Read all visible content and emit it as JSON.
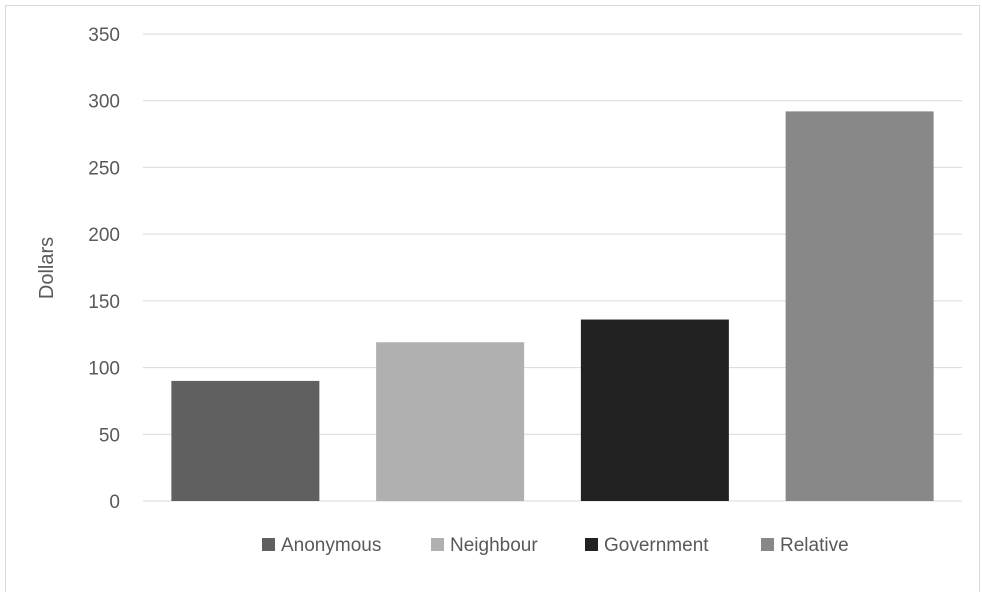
{
  "chart_data": {
    "type": "bar",
    "title": "",
    "xlabel": "",
    "ylabel": "Dollars",
    "ylim": [
      0,
      350
    ],
    "y_ticks": [
      0,
      50,
      100,
      150,
      200,
      250,
      300,
      350
    ],
    "grid": true,
    "legend_position": "bottom",
    "categories": [
      "Anonymous",
      "Neighbour",
      "Government",
      "Relative"
    ],
    "values": [
      90,
      119,
      136,
      292
    ],
    "colors": [
      "#606060",
      "#b0b0b0",
      "#222222",
      "#888888"
    ]
  }
}
